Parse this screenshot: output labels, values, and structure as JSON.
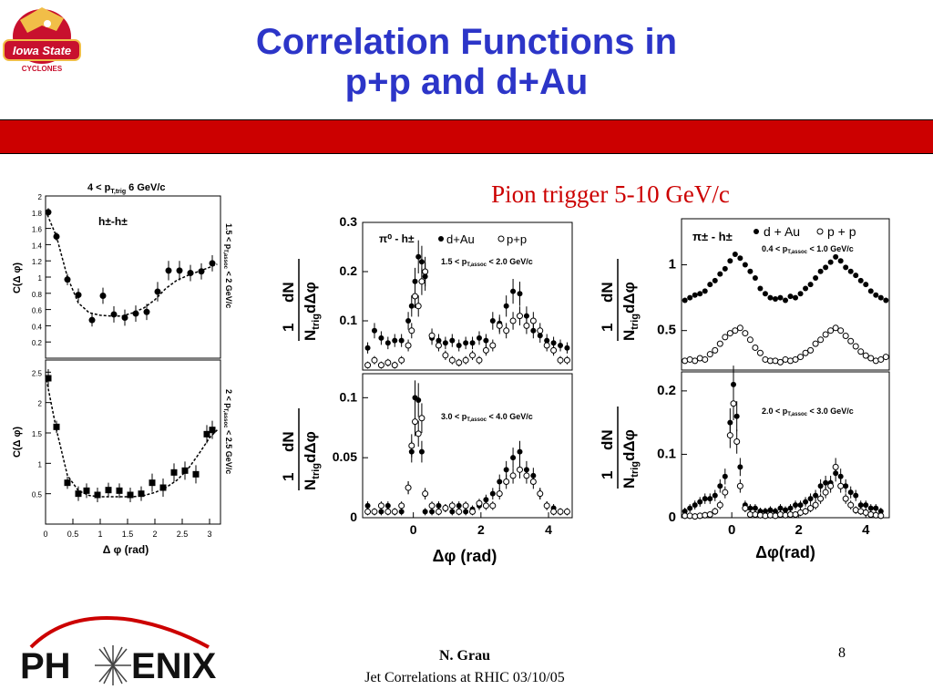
{
  "title": {
    "line1": "Correlation Functions in",
    "line2": "p+p and d+Au"
  },
  "pion_label": "Pion trigger 5-10 GeV/c",
  "logo": {
    "text": "Iowa State Cyclones"
  },
  "phenix": {
    "text": "PH ENIX"
  },
  "footer": {
    "author": "N. Grau",
    "talk": "Jet Correlations at RHIC 03/10/05",
    "page": "8"
  },
  "colors": {
    "title": "#2c35c8",
    "bar": "#cc0000",
    "pion_label": "#cc0000"
  },
  "left_figure": {
    "top_label": "4 < p",
    "top_label_sub": "T,trig",
    "top_label_tail": " 6 GeV/c",
    "xlabel": "Δ φ (rad)",
    "ylabel": "C(Δ φ)"
  },
  "chart_data": [
    {
      "id": "hh-low",
      "type": "scatter",
      "series": [
        {
          "name": "h±-h±",
          "marker": "filled-circle",
          "x": [
            0.05,
            0.2,
            0.4,
            0.6,
            0.85,
            1.05,
            1.25,
            1.45,
            1.65,
            1.85,
            2.05,
            2.25,
            2.45,
            2.65,
            2.85,
            3.05
          ],
          "y": [
            1.8,
            1.5,
            0.97,
            0.78,
            0.47,
            0.77,
            0.54,
            0.5,
            0.55,
            0.57,
            0.82,
            1.08,
            1.08,
            1.05,
            1.07,
            1.17
          ],
          "err": [
            0.05,
            0.05,
            0.07,
            0.08,
            0.08,
            0.1,
            0.1,
            0.1,
            0.1,
            0.1,
            0.12,
            0.12,
            0.12,
            0.1,
            0.1,
            0.1
          ]
        }
      ],
      "fit_x": [
        0,
        0.2,
        0.4,
        0.6,
        0.8,
        1.0,
        1.2,
        1.4,
        1.6,
        1.8,
        2.0,
        2.2,
        2.4,
        2.6,
        2.8,
        3.0,
        3.14
      ],
      "fit_y": [
        1.82,
        1.5,
        1.0,
        0.68,
        0.56,
        0.53,
        0.52,
        0.52,
        0.56,
        0.62,
        0.72,
        0.86,
        0.96,
        1.02,
        1.07,
        1.12,
        1.16
      ],
      "xlim": [
        0,
        3.2
      ],
      "ylim": [
        0,
        2
      ],
      "yticks": [
        "0.2",
        "0.4",
        "0.6",
        "0.8",
        "1",
        "1.2",
        "1.4",
        "1.6",
        "1.8",
        "2"
      ],
      "ytick_values": [
        0.2,
        0.4,
        0.6,
        0.8,
        1,
        1.2,
        1.4,
        1.6,
        1.8,
        2
      ],
      "label": "h±-h±",
      "side_label": "1.5 < p",
      "side_label_sub": "T,assoc",
      "side_label_tail": " < 2 GeV/c",
      "ylabel": "C(Δ φ)"
    },
    {
      "id": "hh-high",
      "type": "scatter",
      "series": [
        {
          "name": "h±-h±",
          "marker": "filled-square",
          "x": [
            0.05,
            0.2,
            0.4,
            0.6,
            0.75,
            0.95,
            1.15,
            1.35,
            1.55,
            1.75,
            1.95,
            2.15,
            2.35,
            2.55,
            2.75,
            2.95,
            3.05
          ],
          "y": [
            2.4,
            1.6,
            0.68,
            0.5,
            0.55,
            0.48,
            0.56,
            0.55,
            0.48,
            0.5,
            0.68,
            0.6,
            0.85,
            0.88,
            0.82,
            1.48,
            1.55
          ],
          "err": [
            0.15,
            0.1,
            0.1,
            0.12,
            0.12,
            0.12,
            0.12,
            0.12,
            0.12,
            0.12,
            0.15,
            0.15,
            0.15,
            0.15,
            0.15,
            0.15,
            0.15
          ]
        }
      ],
      "fit_x": [
        0,
        0.2,
        0.4,
        0.6,
        0.8,
        1.0,
        1.2,
        1.4,
        1.6,
        1.8,
        2.0,
        2.2,
        2.4,
        2.6,
        2.8,
        3.0,
        3.14
      ],
      "fit_y": [
        2.45,
        1.55,
        0.8,
        0.55,
        0.47,
        0.45,
        0.45,
        0.45,
        0.45,
        0.47,
        0.52,
        0.6,
        0.72,
        0.9,
        1.15,
        1.42,
        1.55
      ],
      "xlim": [
        0,
        3.2
      ],
      "ylim": [
        0,
        2.7
      ],
      "yticks": [
        "0.5",
        "1",
        "1.5",
        "2",
        "2.5"
      ],
      "ytick_values": [
        0.5,
        1,
        1.5,
        2,
        2.5
      ],
      "xticks": [
        "0",
        "0.5",
        "1",
        "1.5",
        "2",
        "2.5",
        "3"
      ],
      "xtick_values": [
        0,
        0.5,
        1,
        1.5,
        2,
        2.5,
        3
      ],
      "side_label": "2 < p",
      "side_label_sub": "T,assoc",
      "side_label_tail": " < 2.5 GeV/c",
      "ylabel": "C(Δ φ)"
    },
    {
      "id": "pi0-low",
      "type": "scatter",
      "label": "π⁰ - h±",
      "legend": [
        "d+Au",
        "p+p"
      ],
      "range_label": "1.5 < p",
      "range_sub": "T,assoc",
      "range_tail": " < 2.0 GeV/c",
      "xlim": [
        -1.5,
        4.7
      ],
      "ylim": [
        0,
        0.3
      ],
      "yticks": [
        "0.1",
        "0.2",
        "0.3"
      ],
      "ytick_values": [
        0.1,
        0.2,
        0.3
      ],
      "series": [
        {
          "name": "d+Au",
          "marker": "filled-circle",
          "x": [
            -1.35,
            -1.15,
            -0.95,
            -0.75,
            -0.55,
            -0.35,
            -0.15,
            -0.05,
            0.05,
            0.15,
            0.25,
            0.35,
            0.55,
            0.75,
            0.95,
            1.15,
            1.35,
            1.55,
            1.75,
            1.95,
            2.15,
            2.35,
            2.55,
            2.75,
            2.95,
            3.15,
            3.35,
            3.55,
            3.75,
            3.95,
            4.15,
            4.35,
            4.55
          ],
          "y": [
            0.045,
            0.08,
            0.065,
            0.055,
            0.06,
            0.06,
            0.1,
            0.13,
            0.18,
            0.23,
            0.22,
            0.19,
            0.065,
            0.06,
            0.055,
            0.06,
            0.05,
            0.055,
            0.055,
            0.065,
            0.06,
            0.1,
            0.095,
            0.13,
            0.16,
            0.155,
            0.11,
            0.08,
            0.07,
            0.06,
            0.055,
            0.05,
            0.045
          ]
        },
        {
          "name": "p+p",
          "marker": "open-circle",
          "x": [
            -1.35,
            -1.15,
            -0.95,
            -0.75,
            -0.55,
            -0.35,
            -0.15,
            -0.05,
            0.05,
            0.15,
            0.25,
            0.35,
            0.55,
            0.75,
            0.95,
            1.15,
            1.35,
            1.55,
            1.75,
            1.95,
            2.15,
            2.35,
            2.55,
            2.75,
            2.95,
            3.15,
            3.35,
            3.55,
            3.75,
            3.95,
            4.15,
            4.35,
            4.55
          ],
          "y": [
            0.01,
            0.02,
            0.01,
            0.015,
            0.01,
            0.02,
            0.05,
            0.08,
            0.15,
            0.13,
            0.18,
            0.2,
            0.07,
            0.05,
            0.03,
            0.02,
            0.015,
            0.02,
            0.03,
            0.02,
            0.04,
            0.05,
            0.09,
            0.08,
            0.1,
            0.11,
            0.09,
            0.1,
            0.08,
            0.05,
            0.04,
            0.02,
            0.02
          ]
        }
      ],
      "xticks": [],
      "ylabel": "1 dN / N_trig dΔφ"
    },
    {
      "id": "pi0-high",
      "type": "scatter",
      "range_label": "3.0 < p",
      "range_sub": "T,assoc",
      "range_tail": " < 4.0 GeV/c",
      "xlim": [
        -1.5,
        4.7
      ],
      "ylim": [
        0,
        0.12
      ],
      "yticks": [
        "0",
        "0.05",
        "0.1"
      ],
      "ytick_values": [
        0,
        0.05,
        0.1
      ],
      "xticks": [
        "0",
        "2",
        "4"
      ],
      "xtick_values": [
        0,
        2,
        4
      ],
      "xlabel": "Δφ (rad)",
      "series": [
        {
          "name": "d+Au",
          "marker": "filled-circle",
          "x": [
            -1.35,
            -1.15,
            -0.95,
            -0.75,
            -0.55,
            -0.35,
            -0.15,
            -0.05,
            0.05,
            0.15,
            0.25,
            0.35,
            0.55,
            0.75,
            0.95,
            1.15,
            1.35,
            1.55,
            1.75,
            1.95,
            2.15,
            2.35,
            2.55,
            2.75,
            2.95,
            3.15,
            3.35,
            3.55,
            3.75,
            3.95,
            4.15,
            4.35,
            4.55
          ],
          "y": [
            0.01,
            0.005,
            0.005,
            0.01,
            0.005,
            0.005,
            0.025,
            0.055,
            0.1,
            0.098,
            0.055,
            0.005,
            0.005,
            0.01,
            0.008,
            0.005,
            0.01,
            0.005,
            0.007,
            0.01,
            0.015,
            0.02,
            0.03,
            0.04,
            0.05,
            0.055,
            0.04,
            0.035,
            0.02,
            0.01,
            0.008,
            0.005,
            0.005
          ]
        },
        {
          "name": "p+p",
          "marker": "open-circle",
          "x": [
            -1.35,
            -1.15,
            -0.95,
            -0.75,
            -0.55,
            -0.35,
            -0.15,
            -0.05,
            0.05,
            0.15,
            0.25,
            0.35,
            0.55,
            0.75,
            0.95,
            1.15,
            1.35,
            1.55,
            1.75,
            1.95,
            2.15,
            2.35,
            2.55,
            2.75,
            2.95,
            3.15,
            3.35,
            3.55,
            3.75,
            3.95,
            4.15,
            4.35,
            4.55
          ],
          "y": [
            0.005,
            0.005,
            0.01,
            0.005,
            0.005,
            0.01,
            0.025,
            0.06,
            0.08,
            0.07,
            0.083,
            0.02,
            0.01,
            0.005,
            0.008,
            0.01,
            0.005,
            0.01,
            0.005,
            0.012,
            0.01,
            0.01,
            0.02,
            0.03,
            0.035,
            0.04,
            0.035,
            0.03,
            0.02,
            0.01,
            0.005,
            0.005,
            0.005
          ]
        }
      ],
      "ylabel": "1 dN / N_trig dΔφ"
    },
    {
      "id": "pipm-low",
      "type": "scatter",
      "label": "π± - h±",
      "legend": [
        "d + Au",
        "p + p"
      ],
      "range_label": "0.4 < p",
      "range_sub": "T,assoc",
      "range_tail": " < 1.0 GeV/c",
      "xlim": [
        -1.5,
        4.7
      ],
      "ylim": [
        0.2,
        1.35
      ],
      "yticks": [
        "0.5",
        "1"
      ],
      "ytick_values": [
        0.5,
        1
      ],
      "xticks": [],
      "series": [
        {
          "name": "d + Au",
          "marker": "filled-circle",
          "x": [
            -1.4,
            -1.25,
            -1.1,
            -0.95,
            -0.8,
            -0.65,
            -0.5,
            -0.35,
            -0.2,
            -0.05,
            0.1,
            0.25,
            0.4,
            0.55,
            0.7,
            0.85,
            1.0,
            1.15,
            1.3,
            1.45,
            1.6,
            1.75,
            1.9,
            2.05,
            2.2,
            2.35,
            2.5,
            2.65,
            2.8,
            2.95,
            3.1,
            3.25,
            3.4,
            3.55,
            3.7,
            3.85,
            4.0,
            4.15,
            4.3,
            4.45,
            4.6
          ],
          "y": [
            0.73,
            0.75,
            0.77,
            0.78,
            0.8,
            0.85,
            0.88,
            0.93,
            0.97,
            1.03,
            1.08,
            1.05,
            1.0,
            0.95,
            0.9,
            0.82,
            0.78,
            0.75,
            0.74,
            0.75,
            0.73,
            0.76,
            0.75,
            0.78,
            0.82,
            0.85,
            0.9,
            0.95,
            0.98,
            1.02,
            1.06,
            1.03,
            0.98,
            0.95,
            0.92,
            0.88,
            0.85,
            0.8,
            0.77,
            0.75,
            0.73
          ]
        },
        {
          "name": "p + p",
          "marker": "open-circle",
          "x": [
            -1.4,
            -1.25,
            -1.1,
            -0.95,
            -0.8,
            -0.65,
            -0.5,
            -0.35,
            -0.2,
            -0.05,
            0.1,
            0.25,
            0.4,
            0.55,
            0.7,
            0.85,
            1.0,
            1.15,
            1.3,
            1.45,
            1.6,
            1.75,
            1.9,
            2.05,
            2.2,
            2.35,
            2.5,
            2.65,
            2.8,
            2.95,
            3.1,
            3.25,
            3.4,
            3.55,
            3.7,
            3.85,
            4.0,
            4.15,
            4.3,
            4.45,
            4.6
          ],
          "y": [
            0.27,
            0.28,
            0.27,
            0.29,
            0.28,
            0.32,
            0.35,
            0.4,
            0.45,
            0.48,
            0.5,
            0.52,
            0.48,
            0.43,
            0.37,
            0.33,
            0.28,
            0.27,
            0.27,
            0.26,
            0.28,
            0.27,
            0.28,
            0.3,
            0.33,
            0.35,
            0.4,
            0.43,
            0.47,
            0.5,
            0.52,
            0.5,
            0.46,
            0.42,
            0.38,
            0.34,
            0.31,
            0.29,
            0.27,
            0.28,
            0.3
          ]
        }
      ],
      "ylabel": "1 dN / N_trig dΔφ"
    },
    {
      "id": "pipm-high",
      "type": "scatter",
      "range_label": "2.0 < p",
      "range_sub": "T,assoc",
      "range_tail": " < 3.0 GeV/c",
      "xlim": [
        -1.5,
        4.7
      ],
      "ylim": [
        0,
        0.23
      ],
      "yticks": [
        "0",
        "0.1",
        "0.2"
      ],
      "ytick_values": [
        0,
        0.1,
        0.2
      ],
      "xticks": [
        "0",
        "2",
        "4"
      ],
      "xtick_values": [
        0,
        2,
        4
      ],
      "xlabel": "Δφ(rad)",
      "series": [
        {
          "name": "d + Au",
          "marker": "filled-circle",
          "x": [
            -1.4,
            -1.25,
            -1.1,
            -0.95,
            -0.8,
            -0.65,
            -0.5,
            -0.35,
            -0.2,
            -0.05,
            0.05,
            0.15,
            0.25,
            0.4,
            0.55,
            0.7,
            0.85,
            1.0,
            1.15,
            1.3,
            1.45,
            1.6,
            1.75,
            1.9,
            2.05,
            2.2,
            2.35,
            2.5,
            2.65,
            2.8,
            2.95,
            3.1,
            3.25,
            3.4,
            3.55,
            3.7,
            3.85,
            4.0,
            4.15,
            4.3,
            4.45
          ],
          "y": [
            0.01,
            0.015,
            0.02,
            0.025,
            0.03,
            0.03,
            0.035,
            0.05,
            0.065,
            0.15,
            0.21,
            0.16,
            0.08,
            0.02,
            0.015,
            0.015,
            0.01,
            0.01,
            0.012,
            0.01,
            0.015,
            0.012,
            0.015,
            0.02,
            0.02,
            0.025,
            0.03,
            0.035,
            0.05,
            0.055,
            0.055,
            0.07,
            0.065,
            0.05,
            0.04,
            0.035,
            0.02,
            0.02,
            0.015,
            0.015,
            0.01
          ]
        },
        {
          "name": "p + p",
          "marker": "open-circle",
          "x": [
            -1.4,
            -1.25,
            -1.1,
            -0.95,
            -0.8,
            -0.65,
            -0.5,
            -0.35,
            -0.2,
            -0.05,
            0.05,
            0.15,
            0.25,
            0.4,
            0.55,
            0.7,
            0.85,
            1.0,
            1.15,
            1.3,
            1.45,
            1.6,
            1.75,
            1.9,
            2.05,
            2.2,
            2.35,
            2.5,
            2.65,
            2.8,
            2.95,
            3.1,
            3.25,
            3.4,
            3.55,
            3.7,
            3.85,
            4.0,
            4.15,
            4.3,
            4.45
          ],
          "y": [
            0.003,
            0.003,
            0.002,
            0.003,
            0.004,
            0.005,
            0.01,
            0.02,
            0.04,
            0.13,
            0.18,
            0.12,
            0.05,
            0.015,
            0.005,
            0.005,
            0.004,
            0.003,
            0.004,
            0.003,
            0.005,
            0.004,
            0.005,
            0.005,
            0.008,
            0.01,
            0.015,
            0.02,
            0.03,
            0.04,
            0.05,
            0.08,
            0.05,
            0.03,
            0.02,
            0.012,
            0.01,
            0.008,
            0.005,
            0.004,
            0.003
          ]
        }
      ],
      "ylabel": "1 dN / N_trig dΔφ"
    }
  ]
}
